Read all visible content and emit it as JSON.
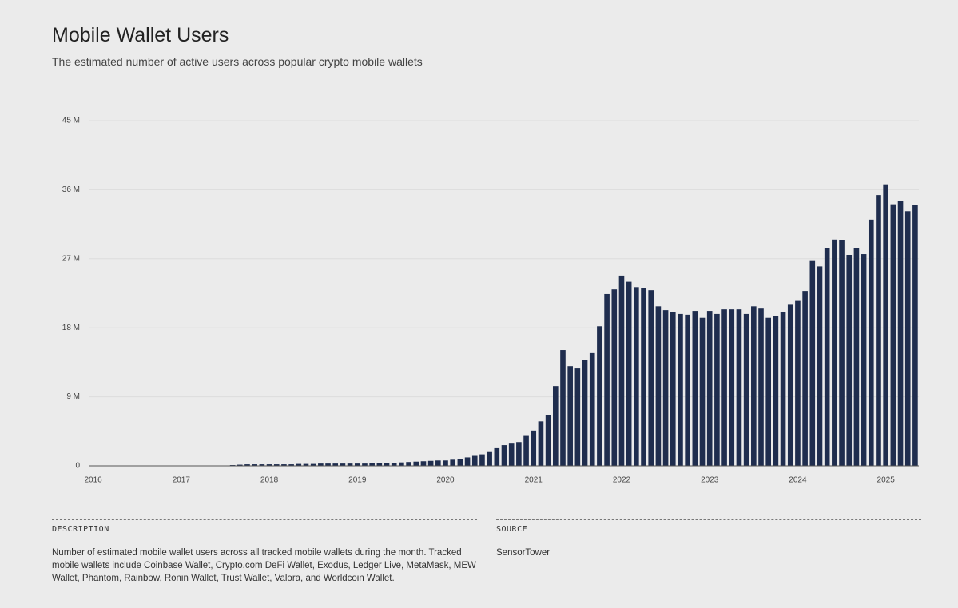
{
  "chart_data": {
    "type": "bar",
    "title": "Mobile Wallet Users",
    "subtitle": "The estimated number of active users across popular crypto mobile wallets",
    "categories": [
      "2016",
      null,
      null,
      null,
      null,
      null,
      null,
      null,
      null,
      null,
      null,
      null,
      "2017",
      null,
      null,
      null,
      null,
      null,
      null,
      null,
      null,
      null,
      null,
      null,
      "2018",
      null,
      null,
      null,
      null,
      null,
      null,
      null,
      null,
      null,
      null,
      null,
      "2019",
      null,
      null,
      null,
      null,
      null,
      null,
      null,
      null,
      null,
      null,
      null,
      "2020",
      null,
      null,
      null,
      null,
      null,
      null,
      null,
      null,
      null,
      null,
      null,
      "2021",
      null,
      null,
      null,
      null,
      null,
      null,
      null,
      null,
      null,
      null,
      null,
      "2022",
      null,
      null,
      null,
      null,
      null,
      null,
      null,
      null,
      null,
      null,
      null,
      "2023",
      null,
      null,
      null,
      null,
      null,
      null,
      null,
      null,
      null,
      null,
      null,
      "2024",
      null,
      null,
      null,
      null,
      null,
      null,
      null,
      null,
      null,
      null,
      null,
      "2025",
      null,
      null,
      null,
      null
    ],
    "values": [
      0,
      0,
      0,
      0,
      0,
      0,
      0,
      0,
      0,
      0,
      0,
      0,
      0,
      0,
      0,
      0,
      0,
      0,
      0,
      0.1,
      0.15,
      0.2,
      0.2,
      0.2,
      0.2,
      0.2,
      0.2,
      0.2,
      0.25,
      0.25,
      0.25,
      0.3,
      0.3,
      0.3,
      0.3,
      0.3,
      0.3,
      0.3,
      0.35,
      0.35,
      0.4,
      0.4,
      0.45,
      0.5,
      0.55,
      0.6,
      0.65,
      0.7,
      0.7,
      0.8,
      0.9,
      1.1,
      1.3,
      1.5,
      1.8,
      2.3,
      2.7,
      2.9,
      3.1,
      3.9,
      4.6,
      5.8,
      6.6,
      10.4,
      15.1,
      13.0,
      12.7,
      13.8,
      14.7,
      18.2,
      22.4,
      23.0,
      24.8,
      24.0,
      23.3,
      23.2,
      22.9,
      20.8,
      20.3,
      20.1,
      19.8,
      19.7,
      20.2,
      19.3,
      20.2,
      19.8,
      20.4,
      20.4,
      20.4,
      19.8,
      20.8,
      20.5,
      19.3,
      19.5,
      20.0,
      21.0,
      21.5,
      22.8,
      26.7,
      26.0,
      28.4,
      29.5,
      29.4,
      27.5,
      28.4,
      27.6,
      32.1,
      35.3,
      36.7,
      34.1,
      34.5,
      33.2,
      34.0
    ],
    "color": "#1f2d4e",
    "ylim": [
      0,
      45
    ],
    "yticks": [
      0,
      {
        "value": 9,
        "label": "9 M"
      },
      {
        "value": 18,
        "label": "18 M"
      },
      {
        "value": 27,
        "label": "27 M"
      },
      {
        "value": 36,
        "label": "36 M"
      },
      {
        "value": 45,
        "label": "45 M"
      }
    ],
    "grid": true
  },
  "footer": {
    "description_heading": "DESCRIPTION",
    "description": "Number of estimated mobile wallet users across all tracked mobile wallets during the month. Tracked mobile wallets include Coinbase Wallet, Crypto.com DeFi Wallet, Exodus, Ledger Live, MetaMask, MEW Wallet, Phantom, Rainbow, Ronin Wallet, Trust Wallet, Valora, and Worldcoin Wallet.",
    "source_heading": "SOURCE",
    "source": "SensorTower"
  }
}
